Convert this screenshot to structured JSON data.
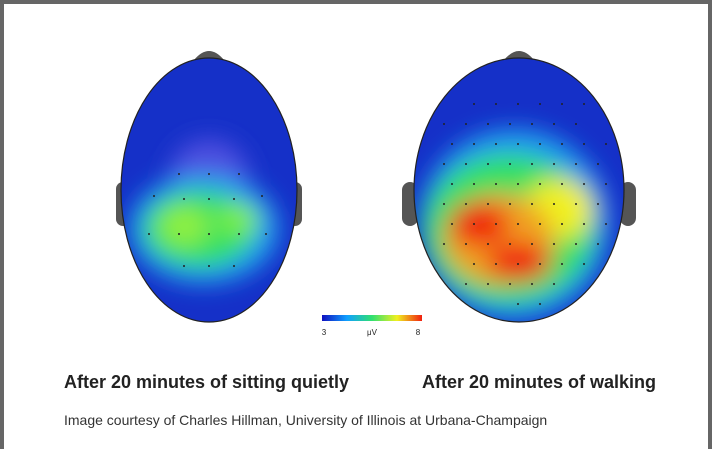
{
  "colorbar": {
    "min": 3,
    "unit": "μV",
    "max": 8
  },
  "captions": [
    "After 20 minutes of sitting quietly",
    "After 20 minutes of walking"
  ],
  "credit": "Image courtesy of Charles Hillman, University of Illinois at Urbana-Champaign"
}
